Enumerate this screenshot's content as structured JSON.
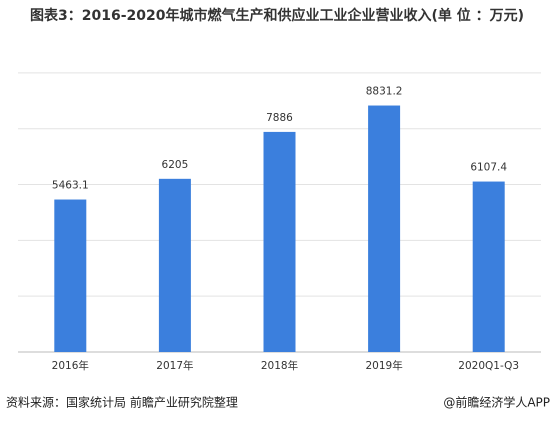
{
  "chart_data": {
    "type": "bar",
    "title": "图表3：2016-2020年城市燃气生产和供应业工业企业营业收入(单 位 ：万元)",
    "categories": [
      "2016年",
      "2017年",
      "2018年",
      "2019年",
      "2020Q1-Q3"
    ],
    "values": [
      5463.1,
      6205,
      7886,
      8831.2,
      6107.4
    ],
    "color": "#3b7fdd",
    "ylim": [
      0,
      11000
    ],
    "yticks": [
      0,
      2000,
      4000,
      6000,
      8000,
      10000
    ],
    "grid": true,
    "source": "资料来源：国家统计局 前瞻产业研究院整理",
    "credit": "@前瞻经济学人APP"
  }
}
